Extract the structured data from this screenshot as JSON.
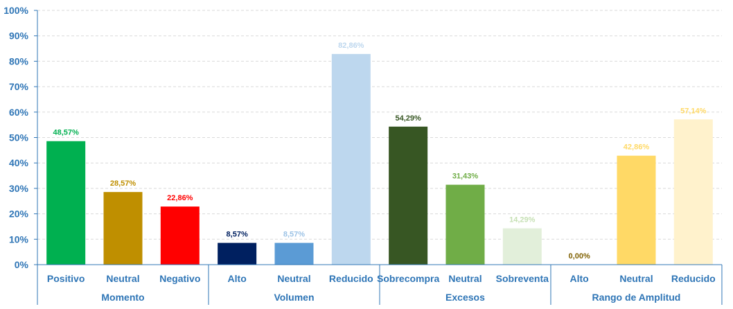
{
  "chart_data": {
    "type": "bar",
    "ylim": [
      0,
      100
    ],
    "y_ticks": [
      "0%",
      "10%",
      "20%",
      "30%",
      "40%",
      "50%",
      "60%",
      "70%",
      "80%",
      "90%",
      "100%"
    ],
    "grid": true,
    "axis_color": "#2e75b6",
    "grid_color": "#d9d9d9",
    "groups": [
      {
        "name": "Momento",
        "bars": [
          {
            "category": "Positivo",
            "value": 48.57,
            "label": "48,57%",
            "color": "#00b050",
            "label_color": "#00b050"
          },
          {
            "category": "Neutral",
            "value": 28.57,
            "label": "28,57%",
            "color": "#bf8f00",
            "label_color": "#bf8f00"
          },
          {
            "category": "Negativo",
            "value": 22.86,
            "label": "22,86%",
            "color": "#ff0000",
            "label_color": "#ff0000"
          }
        ]
      },
      {
        "name": "Volumen",
        "bars": [
          {
            "category": "Alto",
            "value": 8.57,
            "label": "8,57%",
            "color": "#002060",
            "label_color": "#002060"
          },
          {
            "category": "Neutral",
            "value": 8.57,
            "label": "8,57%",
            "color": "#5b9bd5",
            "label_color": "#9dc3e6"
          },
          {
            "category": "Reducido",
            "value": 82.86,
            "label": "82,86%",
            "color": "#bdd7ee",
            "label_color": "#bdd7ee"
          }
        ]
      },
      {
        "name": "Excesos",
        "bars": [
          {
            "category": "Sobrecompra",
            "value": 54.29,
            "label": "54,29%",
            "color": "#375623",
            "label_color": "#375623"
          },
          {
            "category": "Neutral",
            "value": 31.43,
            "label": "31,43%",
            "color": "#70ad47",
            "label_color": "#70ad47"
          },
          {
            "category": "Sobreventa",
            "value": 14.29,
            "label": "14,29%",
            "color": "#e2efda",
            "label_color": "#c6e0b4"
          }
        ]
      },
      {
        "name": "Rango de Amplitud",
        "bars": [
          {
            "category": "Alto",
            "value": 0.0,
            "label": "0,00%",
            "color": "#7f6000",
            "label_color": "#7f6000"
          },
          {
            "category": "Neutral",
            "value": 42.86,
            "label": "42,86%",
            "color": "#ffd966",
            "label_color": "#ffd966"
          },
          {
            "category": "Reducido",
            "value": 57.14,
            "label": "57,14%",
            "color": "#fff2cc",
            "label_color": "#ffd966"
          }
        ]
      }
    ]
  }
}
